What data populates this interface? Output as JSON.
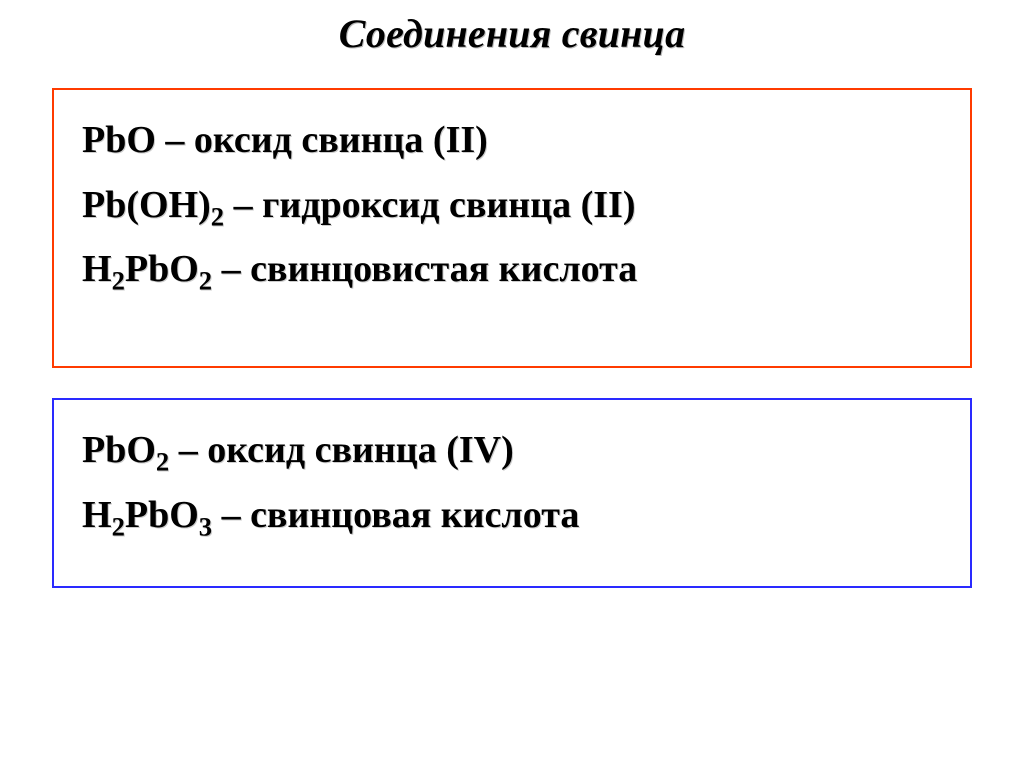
{
  "title": "Соединения свинца",
  "boxes": {
    "lead2": {
      "border_color": "#ff3b00",
      "lines": {
        "1": {
          "f": "PbO",
          "name": "оксид свинца (II)"
        },
        "2": {
          "f_html": "Pb(OH)<sub>2</sub>",
          "name": "гидроксид свинца (II)"
        },
        "3": {
          "f_html": "H<sub>2</sub>PbO<sub>2</sub>",
          "name": "свинцовистая кислота"
        }
      }
    },
    "lead4": {
      "border_color": "#2a2aff",
      "lines": {
        "1": {
          "f_html": "PbO<sub>2</sub>",
          "name": "оксид свинца (IV)"
        },
        "2": {
          "f_html": "H<sub>2</sub>PbO<sub>3</sub>",
          "name": "свинцовая кислота"
        }
      }
    }
  },
  "style": {
    "background_color": "#ffffff",
    "text_color": "#000000",
    "title_fontsize_pt": 30,
    "body_fontsize_pt": 28,
    "font_family": "Times New Roman"
  }
}
